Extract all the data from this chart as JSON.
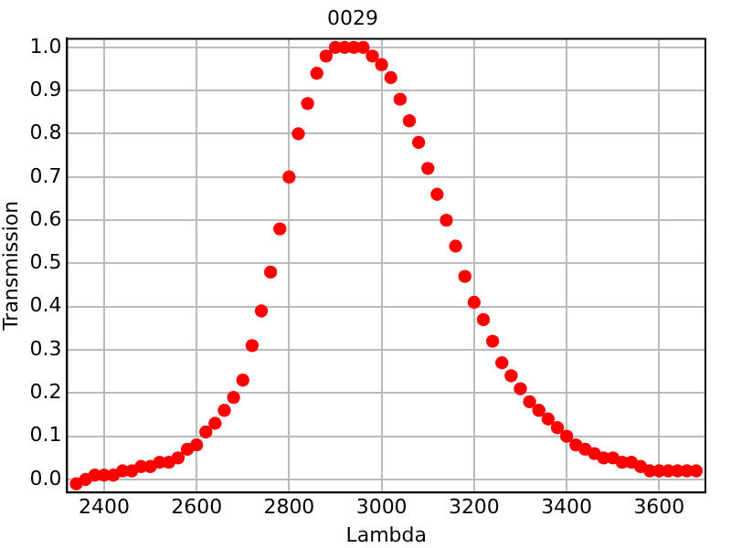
{
  "chart_data": {
    "type": "scatter",
    "title": "0029",
    "xlabel": "Lambda",
    "ylabel": "Transmission",
    "x": [
      2340,
      2360,
      2380,
      2400,
      2420,
      2440,
      2460,
      2480,
      2500,
      2520,
      2540,
      2560,
      2580,
      2600,
      2620,
      2640,
      2660,
      2680,
      2700,
      2720,
      2740,
      2760,
      2780,
      2800,
      2820,
      2840,
      2860,
      2880,
      2900,
      2920,
      2940,
      2960,
      2980,
      3000,
      3020,
      3040,
      3060,
      3080,
      3100,
      3120,
      3140,
      3160,
      3180,
      3200,
      3220,
      3240,
      3260,
      3280,
      3300,
      3320,
      3340,
      3360,
      3380,
      3400,
      3420,
      3440,
      3460,
      3480,
      3500,
      3520,
      3540,
      3560,
      3580,
      3600,
      3620,
      3640,
      3660,
      3680
    ],
    "series": [
      {
        "color": "#ff0000",
        "values": [
          -0.01,
          0.0,
          0.01,
          0.01,
          0.01,
          0.02,
          0.02,
          0.03,
          0.03,
          0.04,
          0.04,
          0.05,
          0.07,
          0.08,
          0.11,
          0.13,
          0.16,
          0.19,
          0.23,
          0.31,
          0.39,
          0.48,
          0.58,
          0.7,
          0.8,
          0.87,
          0.94,
          0.98,
          1.0,
          1.0,
          1.0,
          1.0,
          0.98,
          0.96,
          0.93,
          0.88,
          0.83,
          0.78,
          0.72,
          0.66,
          0.6,
          0.54,
          0.47,
          0.41,
          0.37,
          0.32,
          0.27,
          0.24,
          0.21,
          0.18,
          0.16,
          0.14,
          0.12,
          0.1,
          0.08,
          0.07,
          0.06,
          0.05,
          0.05,
          0.04,
          0.04,
          0.03,
          0.02,
          0.02,
          0.02,
          0.02,
          0.02,
          0.02
        ]
      }
    ],
    "xlim": [
      2320,
      3700
    ],
    "xticks": [
      2400,
      2600,
      2800,
      3000,
      3200,
      3400,
      3600
    ],
    "ylim": [
      -0.03,
      1.02
    ],
    "yticks": [
      {
        "value": 0,
        "label": "0.0"
      },
      0.1,
      0.2,
      0.3,
      0.4,
      0.5,
      0.6,
      0.7,
      0.8,
      0.9,
      {
        "value": 1,
        "label": "1.0"
      }
    ],
    "grid": true,
    "marker": "circle",
    "legend": false
  }
}
